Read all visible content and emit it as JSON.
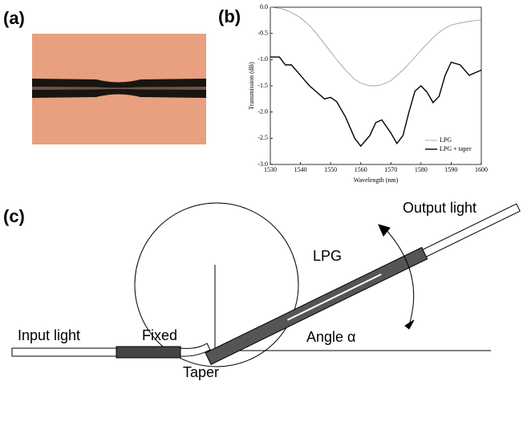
{
  "panels": {
    "a": "(a)",
    "b": "(b)",
    "c": "(c)"
  },
  "diagram": {
    "output": "Output light",
    "lpg": "LPG",
    "input": "Input light",
    "fixed": "Fixed",
    "angle": "Angle α",
    "taper": "Taper"
  },
  "chart_data": {
    "type": "line",
    "xlabel": "Wavelength (nm)",
    "ylabel": "Transmission (dB)",
    "x": [
      1530,
      1533,
      1535,
      1537,
      1540,
      1543,
      1545,
      1548,
      1550,
      1552,
      1555,
      1558,
      1560,
      1563,
      1565,
      1567,
      1570,
      1572,
      1574,
      1576,
      1578,
      1580,
      1582,
      1584,
      1586,
      1588,
      1590,
      1593,
      1596,
      1600
    ],
    "series": [
      {
        "name": "LPG",
        "color": "#888888",
        "values": [
          0,
          -0.02,
          -0.05,
          -0.1,
          -0.2,
          -0.35,
          -0.48,
          -0.7,
          -0.85,
          -1.0,
          -1.2,
          -1.38,
          -1.45,
          -1.5,
          -1.5,
          -1.48,
          -1.4,
          -1.3,
          -1.2,
          -1.08,
          -0.95,
          -0.82,
          -0.7,
          -0.58,
          -0.48,
          -0.4,
          -0.34,
          -0.3,
          -0.27,
          -0.24
        ]
      },
      {
        "name": "LPG + taper",
        "color": "#000000",
        "values": [
          -0.95,
          -0.95,
          -1.1,
          -1.1,
          -1.3,
          -1.5,
          -1.6,
          -1.75,
          -1.72,
          -1.8,
          -2.1,
          -2.5,
          -2.65,
          -2.45,
          -2.2,
          -2.15,
          -2.4,
          -2.6,
          -2.45,
          -2.0,
          -1.6,
          -1.5,
          -1.62,
          -1.82,
          -1.7,
          -1.3,
          -1.05,
          -1.1,
          -1.3,
          -1.2
        ]
      }
    ],
    "xlim": [
      1530,
      1600
    ],
    "xticks": [
      1530,
      1540,
      1550,
      1560,
      1570,
      1580,
      1590,
      1600
    ],
    "ylim": [
      -3,
      0
    ],
    "yticks": [
      {
        "value": 0,
        "label": "0.0"
      },
      -0.5,
      {
        "value": -1,
        "label": "-1.0"
      },
      -1.5,
      {
        "value": -2,
        "label": "-2.0"
      },
      -2.5,
      {
        "value": -3,
        "label": "-3.0"
      }
    ],
    "legend": "lower right"
  }
}
